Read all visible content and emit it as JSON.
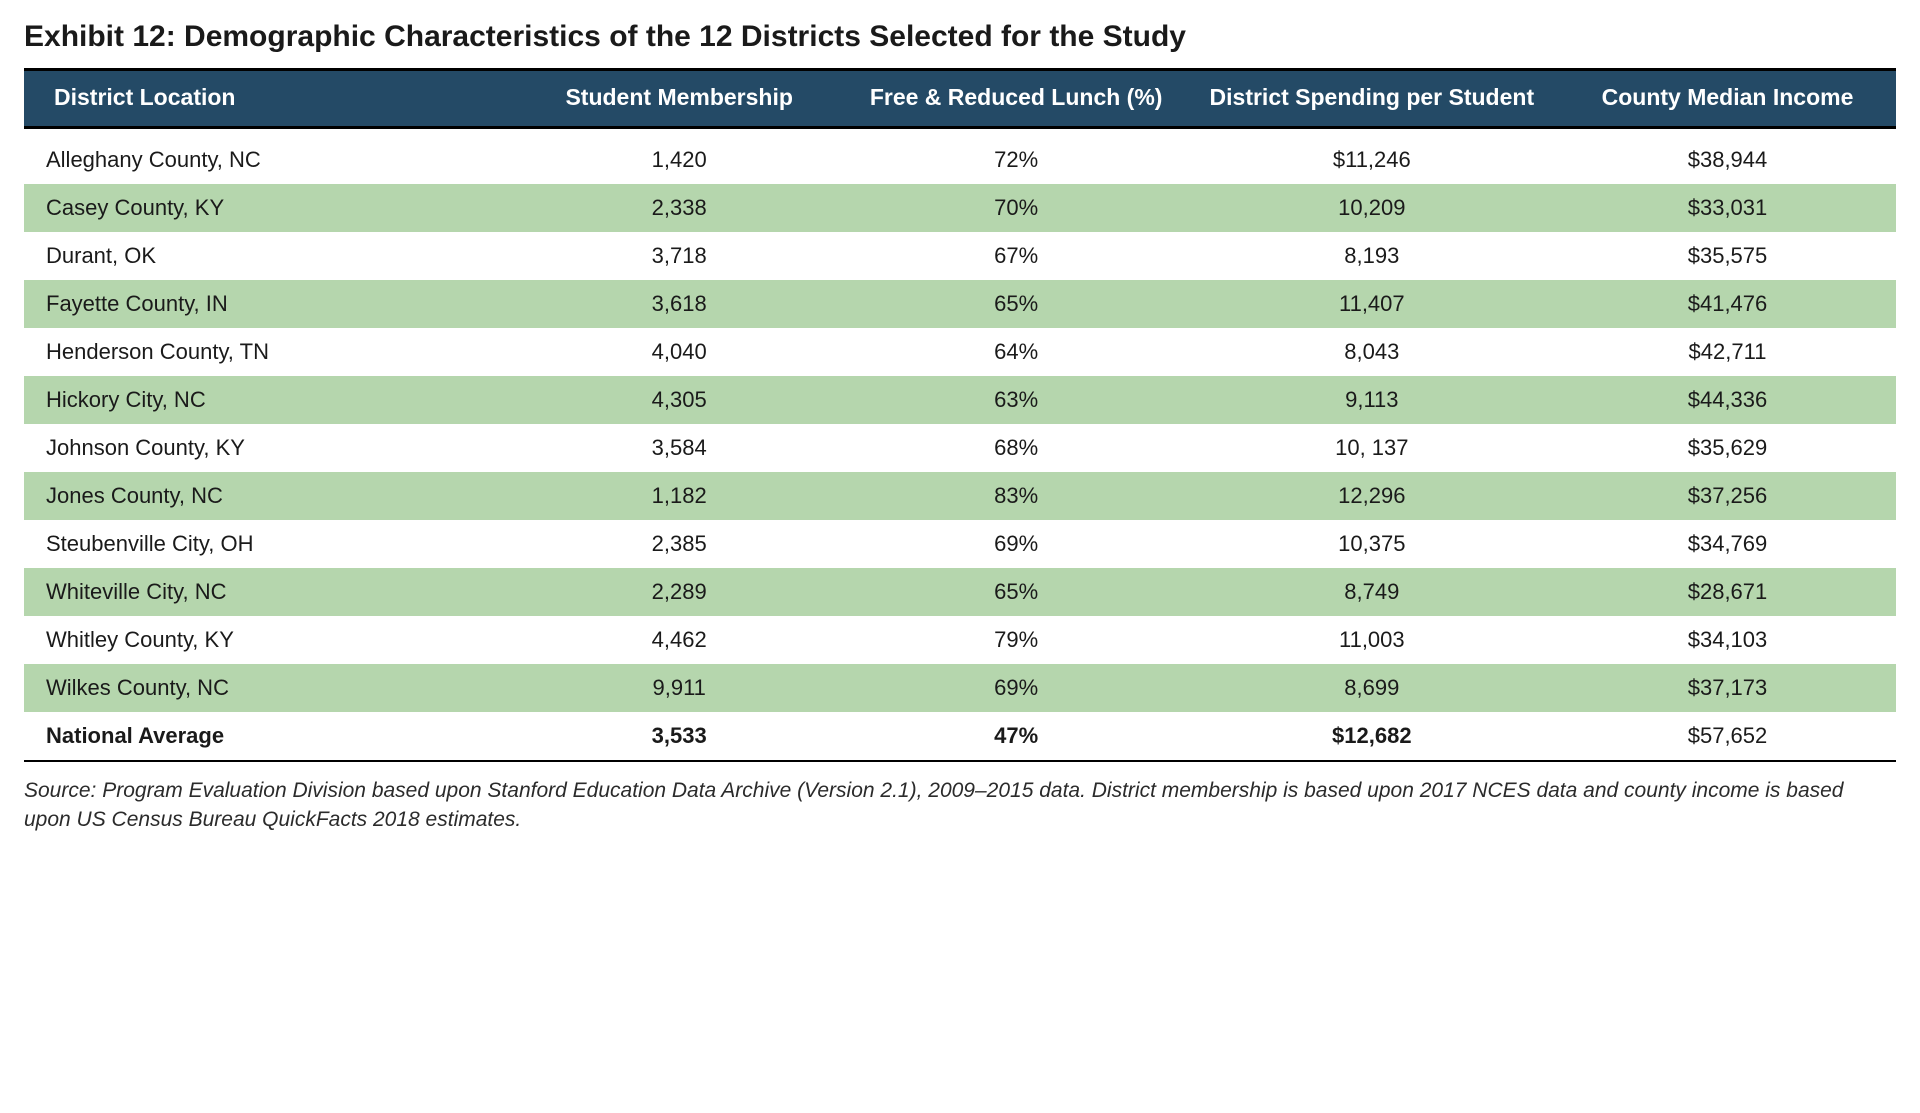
{
  "title": "Exhibit 12: Demographic Characteristics of the 12 Districts Selected for the Study",
  "table": {
    "type": "table",
    "header_bg": "#244a66",
    "header_text_color": "#ffffff",
    "stripe_color": "#b5d6ad",
    "row_bg": "#ffffff",
    "border_color": "#000000",
    "header_fontsize": 23,
    "body_fontsize": 22,
    "columns": [
      "District Location",
      "Student Membership",
      "Free & Reduced Lunch (%)",
      "District Spending per Student",
      "County Median Income"
    ],
    "col_widths_pct": [
      26,
      18,
      18,
      20,
      18
    ],
    "col_align": [
      "left",
      "center",
      "center",
      "center",
      "center"
    ],
    "rows": [
      {
        "stripe": false,
        "cells": [
          "Alleghany County, NC",
          "1,420",
          "72%",
          "$11,246",
          "$38,944"
        ]
      },
      {
        "stripe": true,
        "cells": [
          "Casey County, KY",
          "2,338",
          "70%",
          "10,209",
          "$33,031"
        ]
      },
      {
        "stripe": false,
        "cells": [
          "Durant, OK",
          "3,718",
          "67%",
          "8,193",
          "$35,575"
        ]
      },
      {
        "stripe": true,
        "cells": [
          "Fayette County, IN",
          "3,618",
          "65%",
          "11,407",
          "$41,476"
        ]
      },
      {
        "stripe": false,
        "cells": [
          "Henderson County, TN",
          "4,040",
          "64%",
          "8,043",
          "$42,711"
        ]
      },
      {
        "stripe": true,
        "cells": [
          "Hickory City, NC",
          "4,305",
          "63%",
          "9,113",
          "$44,336"
        ]
      },
      {
        "stripe": false,
        "cells": [
          "Johnson County, KY",
          "3,584",
          "68%",
          "10, 137",
          "$35,629"
        ]
      },
      {
        "stripe": true,
        "cells": [
          "Jones County, NC",
          "1,182",
          "83%",
          "12,296",
          "$37,256"
        ]
      },
      {
        "stripe": false,
        "cells": [
          "Steubenville City, OH",
          "2,385",
          "69%",
          "10,375",
          "$34,769"
        ]
      },
      {
        "stripe": true,
        "cells": [
          "Whiteville City, NC",
          "2,289",
          "65%",
          "8,749",
          "$28,671"
        ]
      },
      {
        "stripe": false,
        "cells": [
          "Whitley County, KY",
          "4,462",
          "79%",
          "11,003",
          "$34,103"
        ]
      },
      {
        "stripe": true,
        "cells": [
          "Wilkes County, NC",
          "9,911",
          "69%",
          "8,699",
          "$37,173"
        ]
      }
    ],
    "average_row": {
      "cells": [
        "National Average",
        "3,533",
        "47%",
        "$12,682",
        "$57,652"
      ]
    }
  },
  "source": "Source: Program Evaluation Division based upon Stanford Education Data Archive (Version 2.1), 2009–2015 data. District membership is based upon 2017 NCES data and county income is based upon US Census Bureau QuickFacts 2018 estimates."
}
